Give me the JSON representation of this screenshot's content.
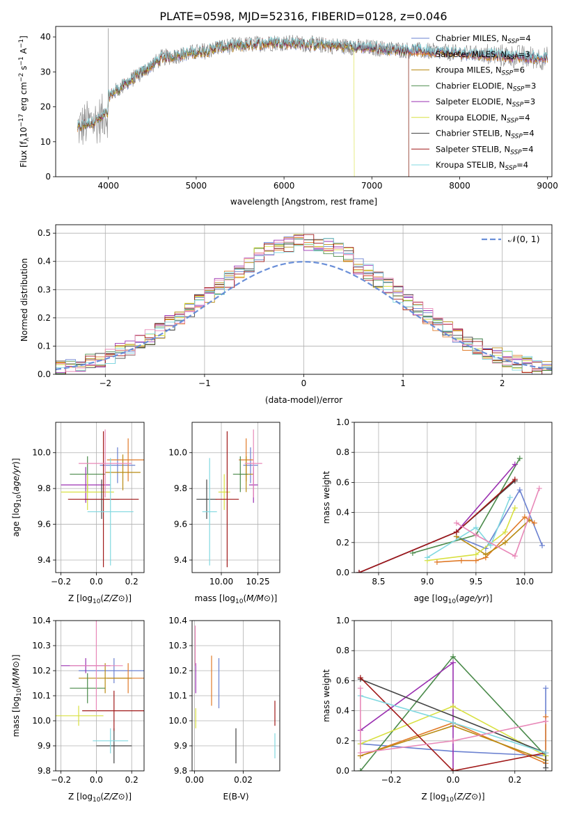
{
  "colors": {
    "chabrier_miles": "#6a80d0",
    "salpeter_miles": "#e07a28",
    "kroupa_miles": "#b88a10",
    "chabrier_elodie": "#4a8a4a",
    "salpeter_elodie": "#9a2fb0",
    "kroupa_elodie": "#d8e040",
    "chabrier_stelib": "#444444",
    "salpeter_stelib": "#a01818",
    "kroupa_stelib": "#80d8e0",
    "pink": "#e888b8",
    "normal": "#6a8fd8",
    "grid": "#b0b0b0"
  },
  "chart_data": [
    {
      "id": "spectrum",
      "type": "line",
      "title": "PLATE=0598, MJD=52316, FIBERID=0128, z=0.046",
      "xlabel": "wavelength [Angstrom, rest frame]",
      "ylabel": "Flux [f_λ10^-17 erg cm^-2 s^-1 A^-1]",
      "xlim": [
        3400,
        9050
      ],
      "ylim": [
        0,
        43
      ],
      "xticks": [
        4000,
        5000,
        6000,
        7000,
        8000,
        9000
      ],
      "yticks": [
        0,
        10,
        20,
        30,
        40
      ],
      "grid": false,
      "legend_position": "top-right",
      "legend": [
        "Chabrier MILES, N_SSP=4",
        "Salpeter MILES, N_SSP=3",
        "Kroupa MILES, N_SSP=6",
        "Chabrier ELODIE, N_SSP=3",
        "Salpeter ELODIE, N_SSP=3",
        "Kroupa ELODIE, N_SSP=4",
        "Chabrier STELIB, N_SSP=4",
        "Salpeter STELIB, N_SSP=4",
        "Kroupa STELIB, N_SSP=4"
      ],
      "legend_keys": [
        "chabrier_miles",
        "salpeter_miles",
        "kroupa_miles",
        "chabrier_elodie",
        "salpeter_elodie",
        "kroupa_elodie",
        "chabrier_stelib",
        "salpeter_stelib",
        "kroupa_stelib"
      ],
      "data_wavelength_range": [
        3650,
        9000
      ],
      "model_cutoffs": {
        "kroupa_elodie": 6800,
        "salpeter_stelib": 7420,
        "chabrier_elodie": 7420
      }
    },
    {
      "id": "residuals",
      "type": "line",
      "xlabel": "(data-model)/error",
      "ylabel": "Normed distribution",
      "xlim": [
        -2.5,
        2.5
      ],
      "ylim": [
        0,
        0.53
      ],
      "xticks": [
        -2,
        -1,
        0,
        1,
        2
      ],
      "yticks": [
        0.0,
        0.1,
        0.2,
        0.3,
        0.4,
        0.5
      ],
      "grid": true,
      "legend_position": "top-right",
      "legend": [
        "𝒩(0, 1)"
      ],
      "bin_width": 0.1,
      "series_note": "step histograms of normalized residuals per model"
    },
    {
      "id": "age_vs_Z",
      "type": "scatter",
      "xlabel": "Z [log10(Z/Z⊙)]",
      "ylabel": "age  [log10(age/yr)]",
      "xlim": [
        -0.23,
        0.27
      ],
      "ylim": [
        9.33,
        10.17
      ],
      "xticks": [
        -0.2,
        0.0,
        0.2
      ],
      "yticks": [
        9.4,
        9.6,
        9.8,
        10.0
      ],
      "grid": true,
      "points": [
        {
          "key": "chabrier_miles",
          "x": 0.12,
          "xerr": 0.1,
          "y": 9.93,
          "yerr": 0.1
        },
        {
          "key": "salpeter_miles",
          "x": 0.18,
          "xerr": 0.12,
          "y": 9.96,
          "yerr": 0.12
        },
        {
          "key": "kroupa_miles",
          "x": 0.15,
          "xerr": 0.1,
          "y": 9.89,
          "yerr": 0.1
        },
        {
          "key": "chabrier_elodie",
          "x": -0.05,
          "xerr": 0.1,
          "y": 9.88,
          "yerr": 0.1
        },
        {
          "key": "salpeter_elodie",
          "x": -0.06,
          "xerr": 0.14,
          "y": 9.82,
          "yerr": 0.1
        },
        {
          "key": "kroupa_elodie",
          "x": -0.05,
          "xerr": 0.15,
          "y": 9.78,
          "yerr": 0.1
        },
        {
          "key": "chabrier_stelib",
          "x": 0.03,
          "xerr": 0.1,
          "y": 9.74,
          "yerr": 0.11
        },
        {
          "key": "salpeter_stelib",
          "x": 0.04,
          "xerr": 0.2,
          "y": 9.74,
          "yerr": 0.38
        },
        {
          "key": "kroupa_stelib",
          "x": 0.08,
          "xerr": 0.13,
          "y": 9.67,
          "yerr": 0.3
        },
        {
          "key": "pink",
          "x": 0.05,
          "xerr": 0.15,
          "y": 9.94,
          "yerr": 0.19
        }
      ]
    },
    {
      "id": "age_vs_mass",
      "type": "scatter",
      "xlabel": "mass [log10(M/M⊙)]",
      "xlim": [
        9.8,
        10.4
      ],
      "ylim": [
        9.33,
        10.17
      ],
      "xticks": [
        10.0,
        10.25
      ],
      "yticks": [
        9.4,
        9.6,
        9.8,
        10.0
      ],
      "grid": true,
      "points": [
        {
          "key": "chabrier_miles",
          "x": 10.2,
          "xerr": 0.05,
          "y": 9.93,
          "yerr": 0.1
        },
        {
          "key": "salpeter_miles",
          "x": 10.17,
          "xerr": 0.05,
          "y": 9.96,
          "yerr": 0.12
        },
        {
          "key": "kroupa_miles",
          "x": 10.17,
          "xerr": 0.05,
          "y": 9.88,
          "yerr": 0.1
        },
        {
          "key": "chabrier_elodie",
          "x": 10.13,
          "xerr": 0.05,
          "y": 9.88,
          "yerr": 0.1
        },
        {
          "key": "salpeter_elodie",
          "x": 10.22,
          "xerr": 0.03,
          "y": 9.82,
          "yerr": 0.1
        },
        {
          "key": "kroupa_elodie",
          "x": 10.02,
          "xerr": 0.04,
          "y": 9.78,
          "yerr": 0.1
        },
        {
          "key": "chabrier_stelib",
          "x": 9.9,
          "xerr": 0.07,
          "y": 9.74,
          "yerr": 0.11
        },
        {
          "key": "salpeter_stelib",
          "x": 10.04,
          "xerr": 0.08,
          "y": 9.74,
          "yerr": 0.38
        },
        {
          "key": "kroupa_stelib",
          "x": 9.92,
          "xerr": 0.05,
          "y": 9.67,
          "yerr": 0.3
        },
        {
          "key": "pink",
          "x": 10.22,
          "xerr": 0.06,
          "y": 9.94,
          "yerr": 0.19
        }
      ]
    },
    {
      "id": "weight_vs_age",
      "type": "line",
      "xlabel": "age  [log10(age/yr)]",
      "ylabel": "mass weight",
      "xlim": [
        8.25,
        10.28
      ],
      "ylim": [
        0,
        1
      ],
      "xticks": [
        8.5,
        9.0,
        9.5,
        10.0
      ],
      "yticks": [
        0.0,
        0.2,
        0.4,
        0.6,
        0.8,
        1.0
      ],
      "grid": true,
      "series": [
        {
          "key": "chabrier_miles",
          "x": [
            9.3,
            9.6,
            9.95,
            10.18
          ],
          "y": [
            0.24,
            0.16,
            0.55,
            0.18
          ]
        },
        {
          "key": "salpeter_miles",
          "x": [
            9.1,
            9.35,
            9.5,
            9.6,
            10.0,
            10.1
          ],
          "y": [
            0.07,
            0.08,
            0.08,
            0.1,
            0.37,
            0.33
          ]
        },
        {
          "key": "kroupa_miles",
          "x": [
            9.3,
            9.6,
            9.8,
            10.05
          ],
          "y": [
            0.24,
            0.12,
            0.2,
            0.35
          ]
        },
        {
          "key": "chabrier_elodie",
          "x": [
            8.85,
            9.5,
            9.95
          ],
          "y": [
            0.13,
            0.25,
            0.76
          ]
        },
        {
          "key": "salpeter_elodie",
          "x": [
            8.3,
            9.3,
            9.9
          ],
          "y": [
            0.0,
            0.27,
            0.72
          ]
        },
        {
          "key": "kroupa_elodie",
          "x": [
            9.0,
            9.5,
            9.8,
            9.9
          ],
          "y": [
            0.08,
            0.12,
            0.27,
            0.43
          ]
        },
        {
          "key": "chabrier_stelib",
          "x": [
            8.3,
            9.3,
            9.9
          ],
          "y": [
            0.0,
            0.27,
            0.61
          ]
        },
        {
          "key": "salpeter_stelib",
          "x": [
            8.3,
            9.3,
            9.9
          ],
          "y": [
            0.0,
            0.27,
            0.62
          ]
        },
        {
          "key": "kroupa_stelib",
          "x": [
            9.0,
            9.5,
            9.65,
            9.85
          ],
          "y": [
            0.1,
            0.3,
            0.18,
            0.5
          ]
        },
        {
          "key": "pink",
          "x": [
            9.3,
            9.5,
            9.9,
            10.15
          ],
          "y": [
            0.33,
            0.25,
            0.11,
            0.56
          ]
        }
      ]
    },
    {
      "id": "mass_vs_Z",
      "type": "scatter",
      "xlabel": "Z [log10(Z/Z⊙)]",
      "ylabel": "mass [log10(M/M⊙)]",
      "xlim": [
        -0.23,
        0.27
      ],
      "ylim": [
        9.8,
        10.4
      ],
      "xticks": [
        -0.2,
        0.0,
        0.2
      ],
      "yticks": [
        9.8,
        9.9,
        10.0,
        10.1,
        10.2,
        10.3,
        10.4
      ],
      "grid": true,
      "points": [
        {
          "key": "chabrier_miles",
          "x": 0.1,
          "xerr": 0.2,
          "y": 10.2,
          "yerr": 0.05
        },
        {
          "key": "salpeter_miles",
          "x": 0.18,
          "xerr": 0.12,
          "y": 10.17,
          "yerr": 0.06
        },
        {
          "key": "kroupa_miles",
          "x": 0.05,
          "xerr": 0.15,
          "y": 10.17,
          "yerr": 0.06
        },
        {
          "key": "chabrier_elodie",
          "x": -0.05,
          "xerr": 0.1,
          "y": 10.13,
          "yerr": 0.06
        },
        {
          "key": "salpeter_elodie",
          "x": -0.06,
          "xerr": 0.14,
          "y": 10.22,
          "yerr": 0.03
        },
        {
          "key": "kroupa_elodie",
          "x": -0.1,
          "xerr": 0.14,
          "y": 10.02,
          "yerr": 0.04
        },
        {
          "key": "chabrier_stelib",
          "x": 0.1,
          "xerr": 0.1,
          "y": 9.9,
          "yerr": 0.07
        },
        {
          "key": "salpeter_stelib",
          "x": 0.1,
          "xerr": 0.18,
          "y": 10.04,
          "yerr": 0.08
        },
        {
          "key": "kroupa_stelib",
          "x": 0.08,
          "xerr": 0.1,
          "y": 9.92,
          "yerr": 0.05
        },
        {
          "key": "pink",
          "x": 0.0,
          "xerr": 0.15,
          "y": 10.22,
          "yerr": 0.18
        }
      ]
    },
    {
      "id": "mass_vs_ebv",
      "type": "scatter",
      "xlabel": "E(B-V)",
      "xlim": [
        -0.001,
        0.035
      ],
      "ylim": [
        9.8,
        10.4
      ],
      "xticks": [
        0.0,
        0.02
      ],
      "yticks": [
        9.8,
        9.9,
        10.0,
        10.1,
        10.2,
        10.3,
        10.4
      ],
      "grid": true,
      "points": [
        {
          "key": "chabrier_miles",
          "x": 0.01,
          "y": 10.15,
          "yerr": 0.1
        },
        {
          "key": "salpeter_miles",
          "x": 0.007,
          "y": 10.16,
          "yerr": 0.1
        },
        {
          "key": "salpeter_elodie",
          "x": 0.0005,
          "y": 10.17,
          "yerr": 0.06
        },
        {
          "key": "kroupa_elodie",
          "x": 0.0005,
          "y": 10.01,
          "yerr": 0.04
        },
        {
          "key": "chabrier_stelib",
          "x": 0.017,
          "y": 9.9,
          "yerr": 0.07
        },
        {
          "key": "salpeter_stelib",
          "x": 0.033,
          "y": 10.03,
          "yerr": 0.05
        },
        {
          "key": "kroupa_stelib",
          "x": 0.033,
          "y": 9.9,
          "yerr": 0.05
        },
        {
          "key": "pink",
          "x": 0.0003,
          "y": 10.3,
          "yerr": 0.08
        }
      ]
    },
    {
      "id": "weight_vs_Z",
      "type": "line",
      "xlabel": "Z [log10(Z/Z⊙)]",
      "ylabel": "mass weight",
      "xlim": [
        -0.32,
        0.32
      ],
      "ylim": [
        0,
        1
      ],
      "xticks": [
        -0.2,
        0.0,
        0.2
      ],
      "yticks": [
        0.0,
        0.2,
        0.4,
        0.6,
        0.8,
        1.0
      ],
      "grid": true,
      "series": [
        {
          "key": "chabrier_miles",
          "x": [
            -0.3,
            0.0,
            0.3,
            0.3
          ],
          "y": [
            0.18,
            0.13,
            0.1,
            0.55
          ]
        },
        {
          "key": "salpeter_miles",
          "x": [
            -0.3,
            0.0,
            0.3,
            0.3
          ],
          "y": [
            0.1,
            0.32,
            0.05,
            0.36
          ]
        },
        {
          "key": "kroupa_miles",
          "x": [
            -0.3,
            0.0,
            0.3
          ],
          "y": [
            0.1,
            0.3,
            0.07
          ]
        },
        {
          "key": "chabrier_elodie",
          "x": [
            -0.3,
            0.0,
            0.3
          ],
          "y": [
            0.0,
            0.76,
            0.1
          ]
        },
        {
          "key": "salpeter_elodie",
          "x": [
            -0.3,
            0.0,
            0.0
          ],
          "y": [
            0.27,
            0.72,
            0.0
          ]
        },
        {
          "key": "kroupa_elodie",
          "x": [
            -0.3,
            0.0,
            0.3
          ],
          "y": [
            0.18,
            0.43,
            0.1
          ]
        },
        {
          "key": "chabrier_stelib",
          "x": [
            -0.3,
            0.3,
            0.3
          ],
          "y": [
            0.61,
            0.12,
            0.02
          ]
        },
        {
          "key": "salpeter_stelib",
          "x": [
            -0.3,
            0.0,
            0.3
          ],
          "y": [
            0.62,
            0.0,
            0.12
          ]
        },
        {
          "key": "kroupa_stelib",
          "x": [
            -0.3,
            0.0,
            0.3
          ],
          "y": [
            0.5,
            0.32,
            0.12
          ]
        },
        {
          "key": "pink",
          "x": [
            -0.3,
            -0.3,
            0.0,
            0.3
          ],
          "y": [
            0.55,
            0.12,
            0.2,
            0.33
          ]
        }
      ]
    }
  ]
}
